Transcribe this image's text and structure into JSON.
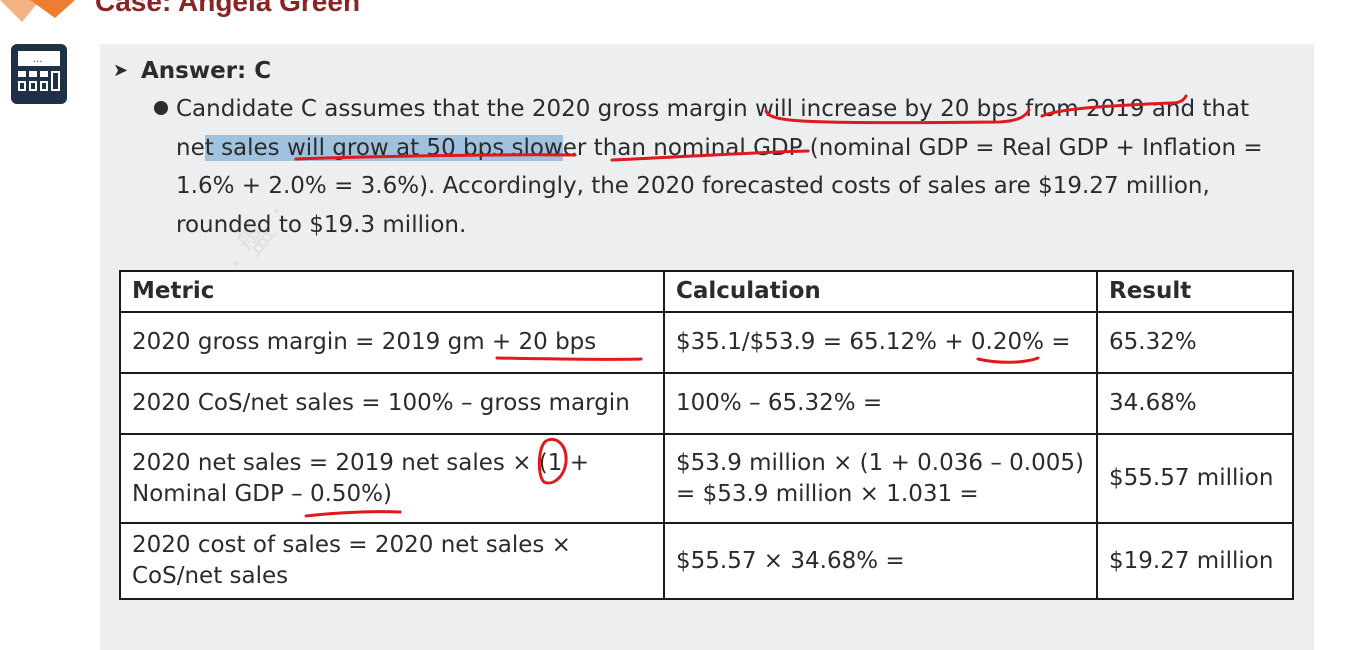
{
  "header": {
    "case_title": "Case: Angela Green"
  },
  "icons": {
    "side_icon": "calculator-icon",
    "answer_marker": "arrow-right-icon",
    "bullet": "bullet-dot-icon"
  },
  "answer": {
    "label": "Answer: C"
  },
  "explanation": {
    "line1": "Candidate C assumes that the 2020 gross margin will increase by 20 bps from 2019 and that",
    "line2_pre": "ne",
    "line2_hl": "t sales will grow at 50 bps slow",
    "line2_post": "er than nominal GDP (nominal GDP = Real GDP + Inflation =",
    "line3": "1.6% + 2.0% = 3.6%). Accordingly, the 2020 forecasted costs of sales are $19.27 million,",
    "line4": "rounded to $19.3 million."
  },
  "table": {
    "headers": [
      "Metric",
      "Calculation",
      "Result"
    ],
    "rows": [
      {
        "metric": [
          "2020 gross margin = 2019 gm + 20 bps"
        ],
        "calculation": [
          "$35.1/$53.9 = 65.12% + 0.20% ="
        ],
        "result": "65.32%"
      },
      {
        "metric": [
          "2020 CoS/net sales = 100% – gross margin"
        ],
        "calculation": [
          "100% – 65.32% ="
        ],
        "result": "34.68%"
      },
      {
        "metric": [
          "2020 net sales = 2019 net sales × (1 +",
          "Nominal GDP – 0.50%)"
        ],
        "calculation": [
          "$53.9 million × (1 + 0.036 – 0.005)",
          "= $53.9 million × 1.031 ="
        ],
        "result": "$55.57 million"
      },
      {
        "metric": [
          "2020 cost of sales = 2020 net sales ×",
          "CoS/net sales"
        ],
        "calculation": [
          "$55.57 × 34.68% ="
        ],
        "result": "$19.27 million"
      }
    ]
  },
  "colors": {
    "title_red": "#8b2323",
    "ink_red": "#e0191d",
    "panel_bg": "#eceef0",
    "icon_navy": "#1f3146",
    "highlight_blue": "#6ea6d4"
  }
}
